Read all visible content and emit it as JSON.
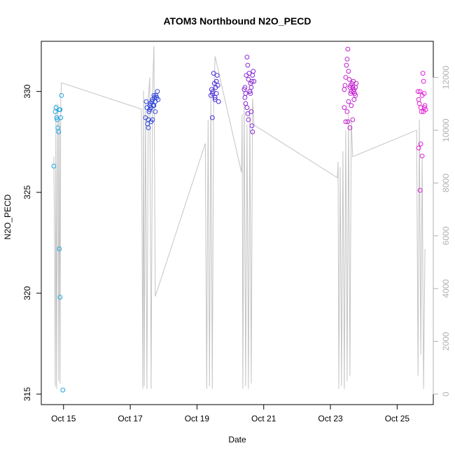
{
  "chart_data": {
    "type": "scatter",
    "title": "ATOM3 Northbound N2O_PECD",
    "xlabel": "Date",
    "ylabel": "N2O_PECD",
    "ylim": [
      315,
      332
    ],
    "y_ticks": [
      315,
      320,
      325,
      330
    ],
    "y2lim": [
      0,
      13000
    ],
    "y2_ticks": [
      0,
      2000,
      4000,
      6000,
      8000,
      10000,
      12000
    ],
    "xlim": [
      "2016-10-14 08:00",
      "2016-10-26 02:00"
    ],
    "x_ticks": [
      {
        "date": "2016-10-15",
        "label": "Oct 15"
      },
      {
        "date": "2016-10-17",
        "label": "Oct 17"
      },
      {
        "date": "2016-10-19",
        "label": "Oct 19"
      },
      {
        "date": "2016-10-21",
        "label": "Oct 21"
      },
      {
        "date": "2016-10-23",
        "label": "Oct 23"
      },
      {
        "date": "2016-10-25",
        "label": "Oct 25"
      }
    ],
    "grid": false,
    "colors": {
      "flight1": "#1fa8e0",
      "flight2": "#2f45d8",
      "flight3": "#4a2fd8",
      "flight4": "#8a2bd6",
      "flight5": "#c21fd0",
      "flight6": "#e01fd6",
      "altitude": "#c4c4c4"
    },
    "series": [
      {
        "color_key": "flight1",
        "points": [
          [
            "2016-10-14 18:00",
            329.0
          ],
          [
            "2016-10-14 18:30",
            329.2
          ],
          [
            "2016-10-14 19:00",
            328.7
          ],
          [
            "2016-10-14 19:30",
            328.6
          ],
          [
            "2016-10-14 20:00",
            328.2
          ],
          [
            "2016-10-14 20:30",
            328.0
          ],
          [
            "2016-10-14 21:00",
            329.1
          ],
          [
            "2016-10-14 21:30",
            329.1
          ],
          [
            "2016-10-14 22:00",
            328.7
          ],
          [
            "2016-10-14 22:30",
            329.8
          ],
          [
            "2016-10-14 17:00",
            326.3
          ],
          [
            "2016-10-14 21:00",
            322.2
          ],
          [
            "2016-10-14 21:30",
            319.8
          ],
          [
            "2016-10-14 23:30",
            315.2
          ]
        ]
      },
      {
        "color_key": "flight2",
        "points": [
          [
            "2016-10-17 11:00",
            328.7
          ],
          [
            "2016-10-17 11:30",
            329.5
          ],
          [
            "2016-10-17 12:00",
            329.2
          ],
          [
            "2016-10-17 12:30",
            328.4
          ],
          [
            "2016-10-17 13:00",
            328.6
          ],
          [
            "2016-10-17 13:30",
            329.0
          ],
          [
            "2016-10-17 14:00",
            329.3
          ],
          [
            "2016-10-17 14:30",
            329.4
          ],
          [
            "2016-10-17 15:00",
            329.2
          ],
          [
            "2016-10-17 15:30",
            329.5
          ],
          [
            "2016-10-17 16:00",
            329.6
          ],
          [
            "2016-10-17 16:30",
            329.3
          ],
          [
            "2016-10-17 17:00",
            329.8
          ],
          [
            "2016-10-17 17:30",
            329.7
          ],
          [
            "2016-10-17 18:00",
            329.5
          ],
          [
            "2016-10-17 18:30",
            329.8
          ],
          [
            "2016-10-17 19:00",
            329.7
          ],
          [
            "2016-10-17 19:30",
            330.0
          ],
          [
            "2016-10-17 20:00",
            329.6
          ],
          [
            "2016-10-17 13:00",
            328.2
          ],
          [
            "2016-10-17 15:00",
            328.5
          ],
          [
            "2016-10-17 16:00",
            328.6
          ],
          [
            "2016-10-17 18:00",
            329.0
          ],
          [
            "2016-10-17 14:00",
            329.1
          ],
          [
            "2016-10-17 17:00",
            329.3
          ]
        ]
      },
      {
        "color_key": "flight3",
        "points": [
          [
            "2016-10-19 10:00",
            329.8
          ],
          [
            "2016-10-19 10:30",
            330.1
          ],
          [
            "2016-10-19 11:00",
            329.9
          ],
          [
            "2016-10-19 11:30",
            330.0
          ],
          [
            "2016-10-19 12:00",
            330.9
          ],
          [
            "2016-10-19 12:30",
            330.4
          ],
          [
            "2016-10-19 13:00",
            329.7
          ],
          [
            "2016-10-19 13:30",
            330.2
          ],
          [
            "2016-10-19 14:00",
            330.5
          ],
          [
            "2016-10-19 14:30",
            330.8
          ],
          [
            "2016-10-19 15:00",
            330.3
          ],
          [
            "2016-10-19 15:30",
            329.5
          ],
          [
            "2016-10-19 11:00",
            328.7
          ],
          [
            "2016-10-19 13:00",
            329.6
          ],
          [
            "2016-10-19 14:00",
            329.9
          ]
        ]
      },
      {
        "color_key": "flight4",
        "points": [
          [
            "2016-10-20 10:00",
            330.1
          ],
          [
            "2016-10-20 10:30",
            330.2
          ],
          [
            "2016-10-20 11:00",
            329.9
          ],
          [
            "2016-10-20 11:30",
            330.8
          ],
          [
            "2016-10-20 12:00",
            331.7
          ],
          [
            "2016-10-20 12:30",
            331.3
          ],
          [
            "2016-10-20 13:00",
            330.6
          ],
          [
            "2016-10-20 13:30",
            330.9
          ],
          [
            "2016-10-20 14:00",
            330.0
          ],
          [
            "2016-10-20 14:30",
            330.4
          ],
          [
            "2016-10-20 15:00",
            330.2
          ],
          [
            "2016-10-20 15:30",
            330.5
          ],
          [
            "2016-10-20 16:00",
            330.8
          ],
          [
            "2016-10-20 16:30",
            331.0
          ],
          [
            "2016-10-20 17:00",
            330.5
          ],
          [
            "2016-10-20 11:00",
            329.4
          ],
          [
            "2016-10-20 12:00",
            329.2
          ],
          [
            "2016-10-20 10:30",
            329.7
          ],
          [
            "2016-10-20 12:30",
            328.9
          ],
          [
            "2016-10-20 13:00",
            328.6
          ],
          [
            "2016-10-20 15:00",
            329.0
          ],
          [
            "2016-10-20 15:30",
            328.3
          ],
          [
            "2016-10-20 16:00",
            328.0
          ],
          [
            "2016-10-20 14:00",
            330.0
          ],
          [
            "2016-10-20 14:30",
            329.9
          ]
        ]
      },
      {
        "color_key": "flight5",
        "points": [
          [
            "2016-10-23 10:00",
            330.1
          ],
          [
            "2016-10-23 10:30",
            330.3
          ],
          [
            "2016-10-23 11:00",
            330.7
          ],
          [
            "2016-10-23 11:30",
            331.3
          ],
          [
            "2016-10-23 12:00",
            331.6
          ],
          [
            "2016-10-23 12:30",
            332.1
          ],
          [
            "2016-10-23 13:00",
            331.0
          ],
          [
            "2016-10-23 13:30",
            330.6
          ],
          [
            "2016-10-23 14:00",
            330.2
          ],
          [
            "2016-10-23 14:30",
            330.3
          ],
          [
            "2016-10-23 15:00",
            330.0
          ],
          [
            "2016-10-23 15:30",
            330.4
          ],
          [
            "2016-10-23 16:00",
            330.2
          ],
          [
            "2016-10-23 16:30",
            330.5
          ],
          [
            "2016-10-23 17:00",
            330.1
          ],
          [
            "2016-10-23 17:30",
            329.9
          ],
          [
            "2016-10-23 18:00",
            330.2
          ],
          [
            "2016-10-23 18:30",
            330.4
          ],
          [
            "2016-10-23 10:00",
            329.2
          ],
          [
            "2016-10-23 11:00",
            328.5
          ],
          [
            "2016-10-23 12:00",
            329.0
          ],
          [
            "2016-10-23 13:00",
            329.5
          ],
          [
            "2016-10-23 14:00",
            328.2
          ],
          [
            "2016-10-23 15:00",
            329.3
          ],
          [
            "2016-10-23 16:00",
            328.6
          ],
          [
            "2016-10-23 17:00",
            329.6
          ],
          [
            "2016-10-23 18:00",
            329.8
          ],
          [
            "2016-10-23 12:30",
            328.5
          ],
          [
            "2016-10-23 14:30",
            329.9
          ],
          [
            "2016-10-23 16:30",
            330.0
          ]
        ]
      },
      {
        "color_key": "flight6",
        "points": [
          [
            "2016-10-25 15:00",
            330.0
          ],
          [
            "2016-10-25 15:30",
            329.6
          ],
          [
            "2016-10-25 16:00",
            329.4
          ],
          [
            "2016-10-25 16:30",
            330.0
          ],
          [
            "2016-10-25 17:00",
            329.2
          ],
          [
            "2016-10-25 17:30",
            329.0
          ],
          [
            "2016-10-25 18:00",
            329.8
          ],
          [
            "2016-10-25 18:30",
            330.9
          ],
          [
            "2016-10-25 19:00",
            330.5
          ],
          [
            "2016-10-25 19:30",
            329.9
          ],
          [
            "2016-10-25 20:00",
            329.3
          ],
          [
            "2016-10-25 20:30",
            329.1
          ],
          [
            "2016-10-25 15:30",
            327.2
          ],
          [
            "2016-10-25 17:00",
            327.4
          ],
          [
            "2016-10-25 18:00",
            326.8
          ],
          [
            "2016-10-25 16:30",
            325.1
          ],
          [
            "2016-10-25 19:00",
            329.0
          ],
          [
            "2016-10-25 19:30",
            329.2
          ]
        ]
      }
    ],
    "altitude_series": {
      "color_key": "altitude",
      "axis": "right",
      "points": [
        [
          "2016-10-14 17:00",
          9000
        ],
        [
          "2016-10-14 17:30",
          6000
        ],
        [
          "2016-10-14 18:00",
          300
        ],
        [
          "2016-10-14 18:30",
          11000
        ],
        [
          "2016-10-14 19:00",
          200
        ],
        [
          "2016-10-14 19:30",
          7000
        ],
        [
          "2016-10-14 20:00",
          11000
        ],
        [
          "2016-10-14 20:30",
          500
        ],
        [
          "2016-10-14 21:00",
          10500
        ],
        [
          "2016-10-14 21:30",
          400
        ],
        [
          "2016-10-14 22:00",
          11200
        ],
        [
          "2016-10-14 22:30",
          11800
        ],
        [
          "2016-10-17 08:00",
          10800
        ],
        [
          "2016-10-17 08:30",
          5900
        ],
        [
          "2016-10-17 09:00",
          200
        ],
        [
          "2016-10-17 09:30",
          11500
        ],
        [
          "2016-10-17 10:00",
          300
        ],
        [
          "2016-10-17 11:00",
          11000
        ],
        [
          "2016-10-17 12:00",
          200
        ],
        [
          "2016-10-17 13:00",
          11200
        ],
        [
          "2016-10-17 14:00",
          12000
        ],
        [
          "2016-10-17 15:00",
          200
        ],
        [
          "2016-10-17 16:00",
          11400
        ],
        [
          "2016-10-17 17:00",
          13200
        ],
        [
          "2016-10-17 18:00",
          3700
        ],
        [
          "2016-10-19 06:00",
          9500
        ],
        [
          "2016-10-19 07:00",
          200
        ],
        [
          "2016-10-19 08:00",
          10400
        ],
        [
          "2016-10-19 09:00",
          300
        ],
        [
          "2016-10-19 10:00",
          11300
        ],
        [
          "2016-10-19 11:00",
          200
        ],
        [
          "2016-10-19 12:00",
          11000
        ],
        [
          "2016-10-19 13:00",
          12800
        ],
        [
          "2016-10-20 08:00",
          8400
        ],
        [
          "2016-10-20 08:30",
          10600
        ],
        [
          "2016-10-20 09:00",
          200
        ],
        [
          "2016-10-20 10:00",
          11000
        ],
        [
          "2016-10-20 11:00",
          300
        ],
        [
          "2016-10-20 12:00",
          10200
        ],
        [
          "2016-10-20 13:00",
          200
        ],
        [
          "2016-10-20 14:00",
          10800
        ],
        [
          "2016-10-20 15:00",
          400
        ],
        [
          "2016-10-20 16:00",
          11200
        ],
        [
          "2016-10-20 17:00",
          10200
        ],
        [
          "2016-10-23 05:00",
          8200
        ],
        [
          "2016-10-23 05:30",
          8800
        ],
        [
          "2016-10-23 06:00",
          200
        ],
        [
          "2016-10-23 07:00",
          8600
        ],
        [
          "2016-10-23 08:00",
          300
        ],
        [
          "2016-10-23 09:00",
          9200
        ],
        [
          "2016-10-23 10:00",
          200
        ],
        [
          "2016-10-23 11:00",
          10000
        ],
        [
          "2016-10-23 12:00",
          500
        ],
        [
          "2016-10-23 13:00",
          10600
        ],
        [
          "2016-10-23 14:00",
          700
        ],
        [
          "2016-10-23 15:00",
          10400
        ],
        [
          "2016-10-23 16:00",
          9000
        ],
        [
          "2016-10-25 14:00",
          10000
        ],
        [
          "2016-10-25 15:00",
          700
        ],
        [
          "2016-10-25 16:00",
          10400
        ],
        [
          "2016-10-25 17:00",
          1500
        ],
        [
          "2016-10-25 18:00",
          9000
        ],
        [
          "2016-10-25 19:00",
          200
        ],
        [
          "2016-10-25 20:00",
          5500
        ]
      ]
    }
  }
}
